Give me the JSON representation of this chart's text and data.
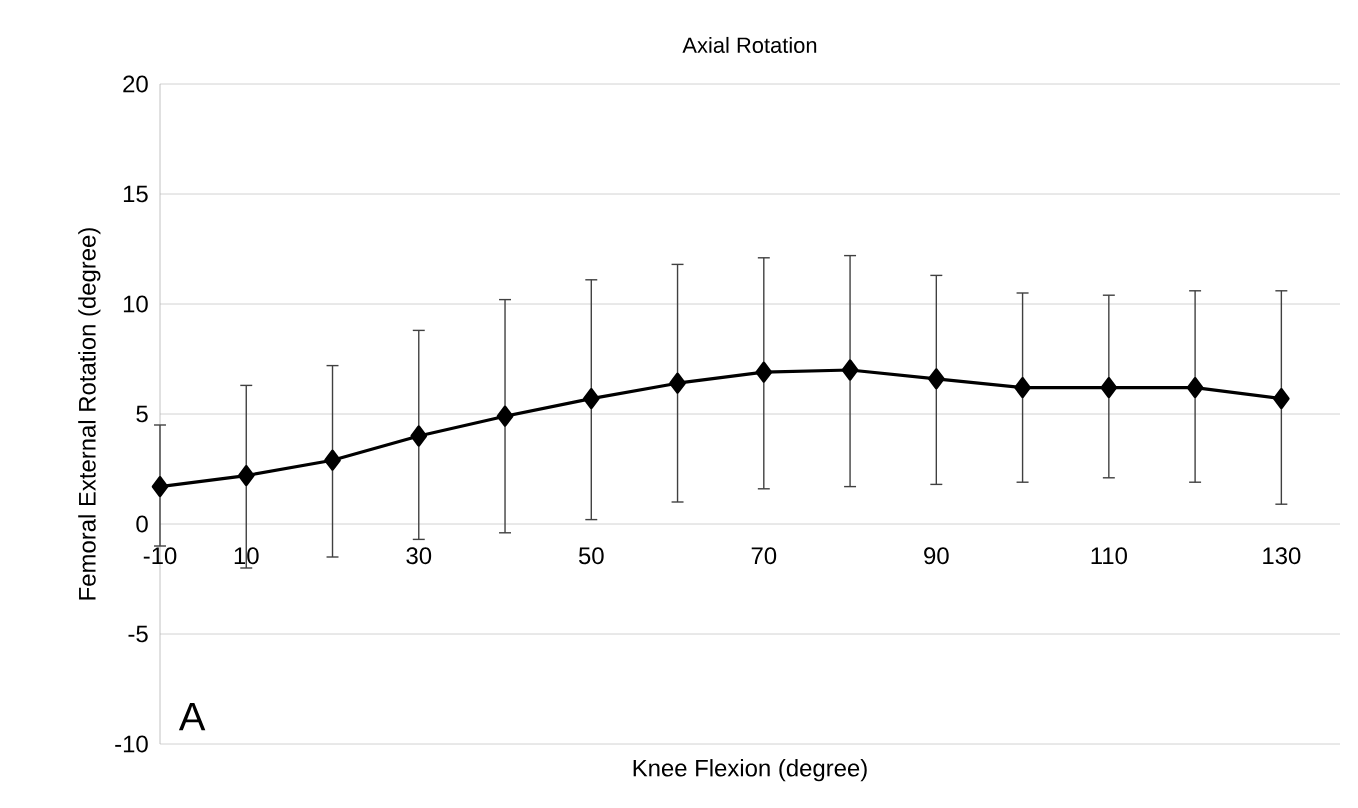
{
  "chart_data": {
    "type": "line",
    "title": "Axial Rotation",
    "xlabel": "Knee Flexion (degree)",
    "ylabel": "Femoral External Rotation (degree)",
    "categories": [
      "-10",
      "10",
      null,
      "30",
      null,
      "50",
      null,
      "70",
      null,
      "90",
      null,
      "110",
      null,
      "130"
    ],
    "series": [
      {
        "color": "#000000",
        "values": [
          1.7,
          2.2,
          2.9,
          4.0,
          4.9,
          5.7,
          6.4,
          6.9,
          7.0,
          6.6,
          6.2,
          6.2,
          6.2,
          5.7
        ],
        "errors": [
          [
            -1.0,
            4.5
          ],
          [
            -2.0,
            6.3
          ],
          [
            -1.5,
            7.2
          ],
          [
            -0.7,
            8.8
          ],
          [
            -0.4,
            10.2
          ],
          [
            0.2,
            11.1
          ],
          [
            1.0,
            11.8
          ],
          [
            1.6,
            12.1
          ],
          [
            1.7,
            12.2
          ],
          [
            1.8,
            11.3
          ],
          [
            1.9,
            10.5
          ],
          [
            2.1,
            10.4
          ],
          [
            1.9,
            10.6
          ],
          [
            0.9,
            10.6
          ]
        ]
      }
    ],
    "ylim": [
      -10,
      20
    ],
    "yticks": [
      -10,
      -5,
      0,
      5,
      10,
      15,
      20
    ],
    "grid": "y",
    "marker": "diamond",
    "line_style": "solid",
    "annotations": [
      "A"
    ]
  }
}
